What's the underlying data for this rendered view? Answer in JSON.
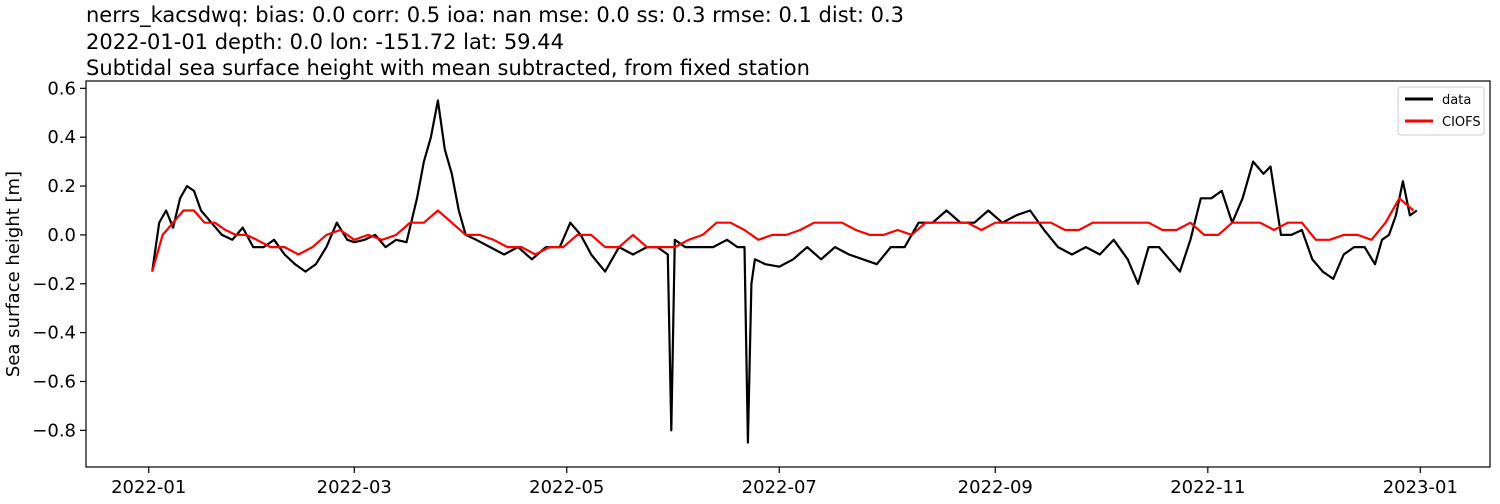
{
  "chart_data": {
    "type": "line",
    "title_lines": [
      "nerrs_kacsdwq: bias: 0.0  corr: 0.5  ioa: nan  mse: 0.0  ss: 0.3  rmse: 0.1  dist: 0.3",
      "2022-01-01 depth: 0.0 lon: -151.72 lat: 59.44",
      "Subtidal sea surface height with mean subtracted, from fixed station"
    ],
    "xlabel": "",
    "ylabel": "Sea surface height [m]",
    "xlim": [
      "2021-12-14",
      "2023-01-21"
    ],
    "ylim": [
      -0.95,
      0.63
    ],
    "x_ticks": [
      "2022-01",
      "2022-03",
      "2022-05",
      "2022-07",
      "2022-09",
      "2022-11",
      "2023-01"
    ],
    "y_ticks": [
      0.6,
      0.4,
      0.2,
      0.0,
      -0.2,
      -0.4,
      -0.6,
      -0.8
    ],
    "y_tick_labels": [
      "0.6",
      "0.4",
      "0.2",
      "0.0",
      "−0.2",
      "−0.4",
      "−0.6",
      "−0.8"
    ],
    "legend": {
      "position": "top-right",
      "entries": [
        "data",
        "CIOFS"
      ]
    },
    "series": [
      {
        "name": "data",
        "color": "#000000",
        "x": [
          "2022-01-02",
          "2022-01-04",
          "2022-01-06",
          "2022-01-08",
          "2022-01-10",
          "2022-01-12",
          "2022-01-14",
          "2022-01-16",
          "2022-01-19",
          "2022-01-22",
          "2022-01-25",
          "2022-01-28",
          "2022-01-31",
          "2022-02-03",
          "2022-02-06",
          "2022-02-09",
          "2022-02-12",
          "2022-02-15",
          "2022-02-18",
          "2022-02-21",
          "2022-02-24",
          "2022-02-27",
          "2022-03-01",
          "2022-03-04",
          "2022-03-07",
          "2022-03-10",
          "2022-03-13",
          "2022-03-16",
          "2022-03-19",
          "2022-03-21",
          "2022-03-23",
          "2022-03-25",
          "2022-03-27",
          "2022-03-29",
          "2022-03-31",
          "2022-04-02",
          "2022-04-05",
          "2022-04-09",
          "2022-04-13",
          "2022-04-17",
          "2022-04-21",
          "2022-04-25",
          "2022-04-29",
          "2022-05-02",
          "2022-05-05",
          "2022-05-08",
          "2022-05-12",
          "2022-05-16",
          "2022-05-20",
          "2022-05-24",
          "2022-05-27",
          "2022-05-30",
          "2022-05-31",
          "2022-06-01",
          "2022-06-04",
          "2022-06-08",
          "2022-06-12",
          "2022-06-16",
          "2022-06-19",
          "2022-06-21",
          "2022-06-22",
          "2022-06-23",
          "2022-06-24",
          "2022-06-27",
          "2022-07-01",
          "2022-07-05",
          "2022-07-09",
          "2022-07-13",
          "2022-07-17",
          "2022-07-21",
          "2022-07-25",
          "2022-07-29",
          "2022-08-02",
          "2022-08-06",
          "2022-08-10",
          "2022-08-14",
          "2022-08-18",
          "2022-08-22",
          "2022-08-26",
          "2022-08-30",
          "2022-09-03",
          "2022-09-07",
          "2022-09-11",
          "2022-09-15",
          "2022-09-19",
          "2022-09-23",
          "2022-09-27",
          "2022-10-01",
          "2022-10-05",
          "2022-10-09",
          "2022-10-12",
          "2022-10-15",
          "2022-10-18",
          "2022-10-21",
          "2022-10-24",
          "2022-10-27",
          "2022-10-30",
          "2022-11-02",
          "2022-11-05",
          "2022-11-08",
          "2022-11-11",
          "2022-11-14",
          "2022-11-17",
          "2022-11-19",
          "2022-11-22",
          "2022-11-25",
          "2022-11-28",
          "2022-12-01",
          "2022-12-04",
          "2022-12-07",
          "2022-12-10",
          "2022-12-13",
          "2022-12-16",
          "2022-12-19",
          "2022-12-21",
          "2022-12-23",
          "2022-12-25",
          "2022-12-27",
          "2022-12-29",
          "2022-12-31"
        ],
        "y": [
          -0.15,
          0.05,
          0.1,
          0.03,
          0.15,
          0.2,
          0.18,
          0.1,
          0.05,
          0.0,
          -0.02,
          0.03,
          -0.05,
          -0.05,
          -0.02,
          -0.08,
          -0.12,
          -0.15,
          -0.12,
          -0.05,
          0.05,
          -0.02,
          -0.03,
          -0.02,
          0.0,
          -0.05,
          -0.02,
          -0.03,
          0.15,
          0.3,
          0.4,
          0.55,
          0.35,
          0.25,
          0.1,
          0.0,
          -0.02,
          -0.05,
          -0.08,
          -0.05,
          -0.1,
          -0.05,
          -0.05,
          0.05,
          0.0,
          -0.08,
          -0.15,
          -0.05,
          -0.08,
          -0.05,
          -0.05,
          -0.08,
          -0.8,
          -0.02,
          -0.05,
          -0.05,
          -0.05,
          -0.02,
          -0.05,
          -0.05,
          -0.85,
          -0.2,
          -0.1,
          -0.12,
          -0.13,
          -0.1,
          -0.05,
          -0.1,
          -0.05,
          -0.08,
          -0.1,
          -0.12,
          -0.05,
          -0.05,
          0.05,
          0.05,
          0.1,
          0.05,
          0.05,
          0.1,
          0.05,
          0.08,
          0.1,
          0.02,
          -0.05,
          -0.08,
          -0.05,
          -0.08,
          -0.02,
          -0.1,
          -0.2,
          -0.05,
          -0.05,
          -0.1,
          -0.15,
          -0.02,
          0.15,
          0.15,
          0.18,
          0.05,
          0.15,
          0.3,
          0.25,
          0.28,
          0.0,
          0.0,
          0.02,
          -0.1,
          -0.15,
          -0.18,
          -0.08,
          -0.05,
          -0.05,
          -0.12,
          -0.02,
          0.0,
          0.08,
          0.22,
          0.08,
          0.1
        ]
      },
      {
        "name": "CIOFS",
        "color": "#ff0000",
        "x": [
          "2022-01-02",
          "2022-01-05",
          "2022-01-08",
          "2022-01-11",
          "2022-01-14",
          "2022-01-17",
          "2022-01-20",
          "2022-01-23",
          "2022-01-26",
          "2022-01-29",
          "2022-02-01",
          "2022-02-05",
          "2022-02-09",
          "2022-02-13",
          "2022-02-17",
          "2022-02-21",
          "2022-02-25",
          "2022-03-01",
          "2022-03-05",
          "2022-03-09",
          "2022-03-13",
          "2022-03-17",
          "2022-03-21",
          "2022-03-25",
          "2022-03-29",
          "2022-04-02",
          "2022-04-06",
          "2022-04-10",
          "2022-04-14",
          "2022-04-18",
          "2022-04-22",
          "2022-04-26",
          "2022-04-30",
          "2022-05-04",
          "2022-05-08",
          "2022-05-12",
          "2022-05-16",
          "2022-05-20",
          "2022-05-24",
          "2022-05-28",
          "2022-06-01",
          "2022-06-05",
          "2022-06-09",
          "2022-06-13",
          "2022-06-17",
          "2022-06-21",
          "2022-06-25",
          "2022-06-29",
          "2022-07-03",
          "2022-07-07",
          "2022-07-11",
          "2022-07-15",
          "2022-07-19",
          "2022-07-23",
          "2022-07-27",
          "2022-07-31",
          "2022-08-04",
          "2022-08-08",
          "2022-08-12",
          "2022-08-16",
          "2022-08-20",
          "2022-08-24",
          "2022-08-28",
          "2022-09-01",
          "2022-09-05",
          "2022-09-09",
          "2022-09-13",
          "2022-09-17",
          "2022-09-21",
          "2022-09-25",
          "2022-09-29",
          "2022-10-03",
          "2022-10-07",
          "2022-10-11",
          "2022-10-15",
          "2022-10-19",
          "2022-10-23",
          "2022-10-27",
          "2022-10-31",
          "2022-11-04",
          "2022-11-08",
          "2022-11-12",
          "2022-11-16",
          "2022-11-20",
          "2022-11-24",
          "2022-11-28",
          "2022-12-02",
          "2022-12-06",
          "2022-12-10",
          "2022-12-14",
          "2022-12-18",
          "2022-12-22",
          "2022-12-26",
          "2022-12-30"
        ],
        "y": [
          -0.15,
          0.0,
          0.05,
          0.1,
          0.1,
          0.05,
          0.05,
          0.02,
          0.0,
          0.0,
          -0.02,
          -0.05,
          -0.05,
          -0.08,
          -0.05,
          0.0,
          0.02,
          -0.02,
          0.0,
          -0.02,
          0.0,
          0.05,
          0.05,
          0.1,
          0.05,
          0.0,
          0.0,
          -0.02,
          -0.05,
          -0.05,
          -0.08,
          -0.05,
          -0.05,
          0.0,
          0.0,
          -0.05,
          -0.05,
          0.0,
          -0.05,
          -0.05,
          -0.05,
          -0.02,
          0.0,
          0.05,
          0.05,
          0.02,
          -0.02,
          0.0,
          0.0,
          0.02,
          0.05,
          0.05,
          0.05,
          0.02,
          0.0,
          0.0,
          0.02,
          0.0,
          0.05,
          0.05,
          0.05,
          0.05,
          0.02,
          0.05,
          0.05,
          0.05,
          0.05,
          0.05,
          0.02,
          0.02,
          0.05,
          0.05,
          0.05,
          0.05,
          0.05,
          0.02,
          0.02,
          0.05,
          0.0,
          0.0,
          0.05,
          0.05,
          0.05,
          0.02,
          0.05,
          0.05,
          -0.02,
          -0.02,
          0.0,
          0.0,
          -0.02,
          0.05,
          0.15,
          0.1
        ]
      }
    ]
  }
}
